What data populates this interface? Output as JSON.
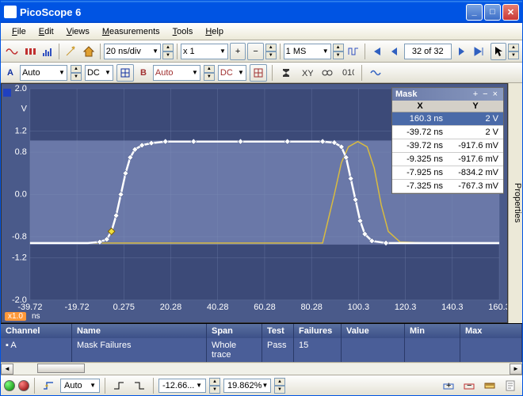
{
  "window": {
    "title": "PicoScope 6"
  },
  "menu": {
    "file": "File",
    "edit": "Edit",
    "views": "Views",
    "measurements": "Measurements",
    "tools": "Tools",
    "help": "Help"
  },
  "toolbar1": {
    "timebase": "20 ns/div",
    "zoom": "x 1",
    "samples": "1 MS",
    "page_current": "32",
    "page_total": "32",
    "page_sep": "of"
  },
  "channels": {
    "a": {
      "label": "A",
      "range": "Auto",
      "coupling": "DC"
    },
    "b": {
      "label": "B",
      "range": "Auto",
      "coupling": "DC"
    }
  },
  "chart": {
    "bg_upper": "#6a78a8",
    "bg_lower": "#3c4a78",
    "grid_color": "#8090b8",
    "axis_color": "#ffffff",
    "trace_color": "#ffffff",
    "mask_color": "#d8bb40",
    "marker_color": "#ffffff",
    "marker_outline": "#4a5a8a",
    "highlight_marker": "#f0e040",
    "y_ticks": [
      "2.0",
      "1.2",
      "0.8",
      "0.0",
      "-0.8",
      "-1.2",
      "-2.0"
    ],
    "y_unit": "V",
    "x_ticks": [
      "-39.72",
      "-19.72",
      "0.275",
      "20.28",
      "40.28",
      "60.28",
      "80.28",
      "100.3",
      "120.3",
      "140.3",
      "160.3"
    ],
    "x_unit": "ns",
    "x_zoom": "x1.0",
    "ylim": [
      -2.0,
      2.0
    ],
    "xlim": [
      -39.72,
      160.3
    ],
    "trace": [
      [
        -39.72,
        -0.92
      ],
      [
        -20,
        -0.92
      ],
      [
        -15,
        -0.92
      ],
      [
        -10,
        -0.9
      ],
      [
        -7,
        -0.85
      ],
      [
        -5,
        -0.7
      ],
      [
        -3,
        -0.4
      ],
      [
        -1,
        0.0
      ],
      [
        1,
        0.4
      ],
      [
        3,
        0.7
      ],
      [
        5,
        0.85
      ],
      [
        8,
        0.93
      ],
      [
        12,
        0.97
      ],
      [
        18,
        1.0
      ],
      [
        30,
        1.0
      ],
      [
        50,
        1.0
      ],
      [
        70,
        1.0
      ],
      [
        85,
        1.0
      ],
      [
        90,
        0.98
      ],
      [
        93,
        0.9
      ],
      [
        95,
        0.7
      ],
      [
        97,
        0.3
      ],
      [
        99,
        -0.1
      ],
      [
        101,
        -0.5
      ],
      [
        103,
        -0.75
      ],
      [
        106,
        -0.88
      ],
      [
        112,
        -0.92
      ],
      [
        130,
        -0.92
      ],
      [
        160.3,
        -0.92
      ]
    ],
    "mask_outer": [
      [
        -39.72,
        -0.92
      ],
      [
        85,
        -0.92
      ],
      [
        90,
        0.0
      ],
      [
        93,
        0.6
      ],
      [
        96,
        0.9
      ],
      [
        100,
        1.0
      ],
      [
        104,
        0.9
      ],
      [
        107,
        0.5
      ],
      [
        110,
        -0.2
      ],
      [
        113,
        -0.7
      ],
      [
        118,
        -0.9
      ],
      [
        130,
        -0.92
      ],
      [
        160.3,
        -0.92
      ]
    ]
  },
  "mask_panel": {
    "title": "Mask",
    "col_x": "X",
    "col_y": "Y",
    "rows": [
      {
        "x": "160.3 ns",
        "y": "2 V",
        "sel": true
      },
      {
        "x": "-39.72 ns",
        "y": "2 V"
      },
      {
        "x": "-39.72 ns",
        "y": "-917.6 mV"
      },
      {
        "x": "-9.325 ns",
        "y": "-917.6 mV"
      },
      {
        "x": "-7.925 ns",
        "y": "-834.2 mV"
      },
      {
        "x": "-7.325 ns",
        "y": "-767.3 mV"
      }
    ]
  },
  "table": {
    "cols": {
      "channel": "Channel",
      "name": "Name",
      "span": "Span",
      "test": "Test",
      "failures": "Failures",
      "value": "Value",
      "min": "Min",
      "max": "Max"
    },
    "row": {
      "channel": "A",
      "name": "Mask Failures",
      "span": "Whole trace",
      "test": "Pass",
      "failures": "15",
      "value": "",
      "min": "",
      "max": ""
    }
  },
  "status": {
    "trigger_mode": "Auto",
    "val1": "-12.66...",
    "val2": "19.862%"
  },
  "sidebar": {
    "properties": "Properties"
  },
  "colors": {
    "titlebar": "#0054e3",
    "panel_bg": "#ece9d8",
    "chart_bg": "#4a5a8a",
    "table_bg": "#3c5088",
    "table_row": "#4a5e98",
    "channel_a": "#1030a0",
    "channel_b": "#a03030"
  }
}
